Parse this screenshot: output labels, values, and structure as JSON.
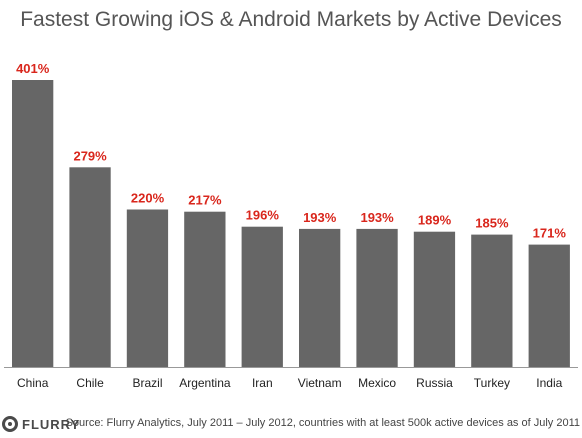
{
  "colors": {
    "bar": "#666666",
    "value_label": "#d9261c",
    "axis": "#999999",
    "category_label": "#222222"
  },
  "chart_data": {
    "type": "bar",
    "title": "Fastest Growing iOS & Android Markets by Active Devices",
    "xlabel": "",
    "ylabel": "",
    "categories": [
      "China",
      "Chile",
      "Brazil",
      "Argentina",
      "Iran",
      "Vietnam",
      "Mexico",
      "Russia",
      "Turkey",
      "India"
    ],
    "values": [
      401,
      279,
      220,
      217,
      196,
      193,
      193,
      189,
      185,
      171
    ],
    "value_labels": [
      "401%",
      "279%",
      "220%",
      "217%",
      "196%",
      "193%",
      "193%",
      "189%",
      "185%",
      "171%"
    ],
    "ylim": [
      0,
      401
    ],
    "grid": false,
    "legend": "none"
  },
  "footer": {
    "logo_text": "FLURRY",
    "logo_icon": "flurry-logo-icon",
    "source": "Source: Flurry Analytics, July 2011 – July 2012, countries with at least 500k active devices as of July 2011"
  }
}
